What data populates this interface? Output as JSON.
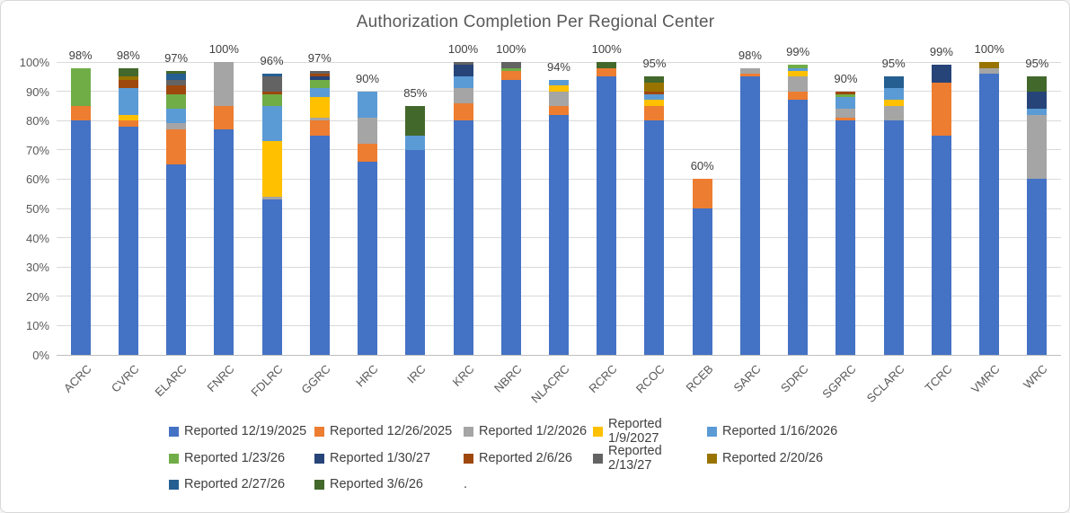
{
  "style": {
    "background": "#FFFFFF",
    "border_color": "#D8D8D8",
    "gridline_color": "#D9D9D9",
    "axis_text_color": "#595959",
    "data_label_color": "#404040",
    "title_color": "#595959"
  },
  "chart_data": {
    "type": "bar",
    "stacked": true,
    "title": "Authorization Completion Per Regional Center",
    "xlabel": "",
    "ylabel": "",
    "ylim_pct": [
      0,
      100
    ],
    "grid": "horizontal",
    "legend_position": "bottom",
    "legend_trailing_text": ".",
    "y_ticks": [
      "0%",
      "10%",
      "20%",
      "30%",
      "40%",
      "50%",
      "60%",
      "70%",
      "80%",
      "90%",
      "100%"
    ],
    "categories": [
      "ACRC",
      "CVRC",
      "ELARC",
      "FNRC",
      "FDLRC",
      "GGRC",
      "HRC",
      "IRC",
      "KRC",
      "NBRC",
      "NLACRC",
      "RCRC",
      "RCOC",
      "RCEB",
      "SARC",
      "SDRC",
      "SGPRC",
      "SCLARC",
      "TCRC",
      "VMRC",
      "WRC"
    ],
    "totals_labels": [
      "98%",
      "98%",
      "97%",
      "100%",
      "96%",
      "97%",
      "90%",
      "85%",
      "100%",
      "100%",
      "94%",
      "100%",
      "95%",
      "60%",
      "98%",
      "99%",
      "90%",
      "95%",
      "99%",
      "100%",
      "95%"
    ],
    "series": [
      {
        "name": "Reported 12/19/2025",
        "color": "#4472C4",
        "values": [
          80,
          78,
          65,
          77,
          53,
          75,
          66,
          70,
          80,
          94,
          82,
          95,
          80,
          50,
          95,
          87,
          80,
          80,
          75,
          96,
          60
        ]
      },
      {
        "name": "Reported 12/26/2025",
        "color": "#ED7D31",
        "values": [
          5,
          2,
          12,
          8,
          0,
          5,
          6,
          0,
          6,
          3,
          3,
          3,
          5,
          10,
          1,
          3,
          1,
          0,
          18,
          0,
          0
        ]
      },
      {
        "name": "Reported 1/2/2026",
        "color": "#A5A5A5",
        "values": [
          0,
          0,
          2,
          15,
          1,
          1,
          9,
          0,
          5,
          0,
          5,
          0,
          0,
          0,
          2,
          5,
          3,
          5,
          0,
          2,
          22
        ]
      },
      {
        "name": "Reported 1/9/2027",
        "color": "#FFC000",
        "values": [
          0,
          2,
          0,
          0,
          19,
          7,
          0,
          0,
          0,
          0,
          2,
          0,
          2,
          0,
          0,
          2,
          0,
          2,
          0,
          0,
          0
        ]
      },
      {
        "name": "Reported 1/16/2026",
        "color": "#5B9BD5",
        "values": [
          0,
          9,
          5,
          0,
          12,
          3,
          9,
          5,
          4,
          0,
          2,
          0,
          2,
          0,
          0,
          1,
          4,
          4,
          0,
          0,
          2
        ]
      },
      {
        "name": "Reported 1/23/26",
        "color": "#70AD47",
        "values": [
          13,
          0,
          5,
          0,
          4,
          3,
          0,
          0,
          0,
          1,
          0,
          0,
          0,
          0,
          0,
          1,
          1,
          0,
          0,
          0,
          0
        ]
      },
      {
        "name": "Reported 1/30/27",
        "color": "#264478",
        "values": [
          0,
          0,
          0,
          0,
          0,
          1,
          0,
          0,
          4,
          0,
          0,
          0,
          0,
          0,
          0,
          0,
          0,
          0,
          6,
          0,
          6
        ]
      },
      {
        "name": "Reported 2/6/26",
        "color": "#9E480E",
        "values": [
          0,
          3,
          3,
          0,
          1,
          1,
          0,
          0,
          0,
          0,
          0,
          0,
          1,
          0,
          0,
          0,
          1,
          0,
          0,
          0,
          0
        ]
      },
      {
        "name": "Reported 2/13/27",
        "color": "#636363",
        "values": [
          0,
          0,
          2,
          0,
          5,
          1,
          0,
          0,
          1,
          2,
          0,
          0,
          0,
          0,
          0,
          0,
          0,
          0,
          0,
          0,
          0
        ]
      },
      {
        "name": "Reported 2/20/26",
        "color": "#997300",
        "values": [
          0,
          1,
          0,
          0,
          0,
          0,
          0,
          0,
          0,
          0,
          0,
          0,
          3,
          0,
          0,
          0,
          0,
          0,
          0,
          2,
          0
        ]
      },
      {
        "name": "Reported 2/27/26",
        "color": "#255E91",
        "values": [
          0,
          0,
          2,
          0,
          1,
          0,
          0,
          0,
          0,
          0,
          0,
          0,
          0,
          0,
          0,
          0,
          0,
          4,
          0,
          0,
          0
        ]
      },
      {
        "name": "Reported 3/6/26",
        "color": "#43682B",
        "values": [
          0,
          3,
          1,
          0,
          0,
          0,
          0,
          10,
          0,
          0,
          0,
          2,
          2,
          0,
          0,
          0,
          0,
          0,
          0,
          0,
          5
        ]
      }
    ],
    "legend_rows": [
      [
        0,
        1,
        2,
        3,
        4
      ],
      [
        5,
        6,
        7,
        8,
        9
      ],
      [
        10,
        11
      ]
    ]
  }
}
